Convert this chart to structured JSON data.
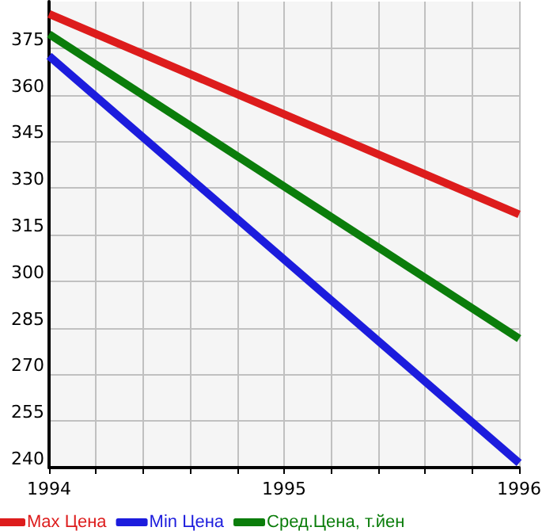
{
  "chart_data": {
    "type": "line",
    "x": [
      1994,
      1996
    ],
    "series": [
      {
        "name": "Max Цена",
        "color": "#dd1c1c",
        "values": [
          386,
          321.5
        ]
      },
      {
        "name": "Min Цена",
        "color": "#1c1cdd",
        "values": [
          372.5,
          241.5
        ]
      },
      {
        "name": "Сред.Цена, т.йен",
        "color": "#0b7d0b",
        "values": [
          379.5,
          281.5
        ]
      }
    ],
    "xlim": [
      1994,
      1996
    ],
    "xticks": [
      1994,
      {
        "value": 1994.2,
        "label": null
      },
      {
        "value": 1994.4,
        "label": null
      },
      {
        "value": 1994.6,
        "label": null
      },
      {
        "value": 1994.8,
        "label": null
      },
      1995,
      {
        "value": 1995.2,
        "label": null
      },
      {
        "value": 1995.4,
        "label": null
      },
      {
        "value": 1995.6,
        "label": null
      },
      {
        "value": 1995.8,
        "label": null
      },
      1996
    ],
    "ylim": [
      240,
      390
    ],
    "yticks": [
      240,
      255,
      270,
      285,
      300,
      315,
      330,
      345,
      360,
      375
    ],
    "grid": true,
    "legend": "bottom",
    "marker": "none",
    "line_style": "solid"
  }
}
